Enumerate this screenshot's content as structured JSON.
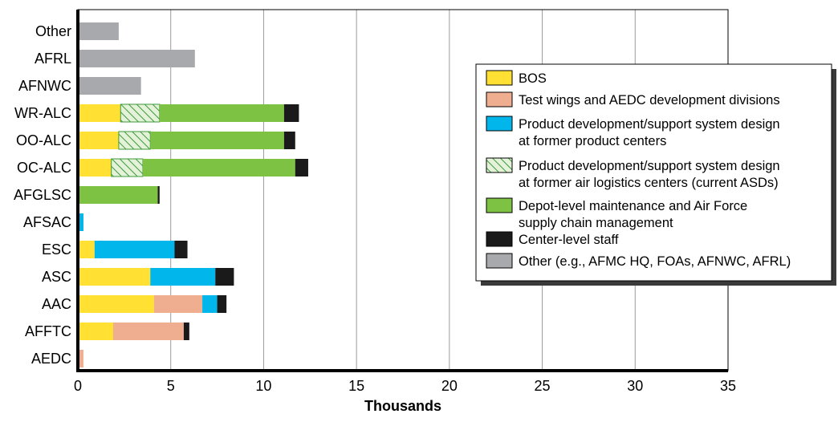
{
  "chart_data": {
    "type": "bar",
    "orientation": "horizontal",
    "stacked": true,
    "title": "",
    "xlabel": "Thousands",
    "ylabel": "",
    "xlim": [
      0,
      35
    ],
    "xticks": [
      "0",
      "5",
      "10",
      "15",
      "20",
      "25",
      "30",
      "35"
    ],
    "grid": "vertical",
    "legend_position": "right",
    "categories": [
      "Other",
      "AFRL",
      "AFNWC",
      "WR-ALC",
      "OO-ALC",
      "OC-ALC",
      "AFGLSC",
      "AFSAC",
      "ESC",
      "ASC",
      "AAC",
      "AFFTC",
      "AEDC"
    ],
    "series": [
      {
        "name": "BOS",
        "color": "#FFE033",
        "pattern": "solid",
        "values": [
          0,
          0,
          0,
          2.3,
          2.2,
          1.8,
          0,
          0,
          0.9,
          3.9,
          4.1,
          1.9,
          0
        ]
      },
      {
        "name": "Test wings and AEDC development divisions",
        "color": "#EFAE90",
        "pattern": "solid",
        "values": [
          0,
          0,
          0,
          0,
          0,
          0,
          0,
          0,
          0,
          0,
          2.6,
          3.8,
          0.3
        ]
      },
      {
        "name": "Product development/support system design at former product centers",
        "color": "#00B6EB",
        "pattern": "solid",
        "values": [
          0,
          0,
          0,
          0,
          0,
          0,
          0,
          0.3,
          4.3,
          3.5,
          0.8,
          0,
          0
        ]
      },
      {
        "name": "Product development/support system design at former air logistics centers (current ASDs)",
        "color": "#9ED08A",
        "pattern": "hatched",
        "values": [
          0,
          0,
          0,
          2.1,
          1.7,
          1.7,
          0,
          0,
          0,
          0,
          0,
          0,
          0
        ]
      },
      {
        "name": "Depot-level maintenance and Air Force supply chain management",
        "color": "#7DC242",
        "pattern": "solid",
        "values": [
          0,
          0,
          0,
          6.7,
          7.2,
          8.2,
          4.3,
          0,
          0,
          0,
          0,
          0,
          0
        ]
      },
      {
        "name": "Center-level staff",
        "color": "#1A1A1A",
        "pattern": "solid",
        "values": [
          0,
          0,
          0,
          0.8,
          0.6,
          0.7,
          0.1,
          0,
          0.7,
          1.0,
          0.5,
          0.3,
          0
        ]
      },
      {
        "name": "Other (e.g., AFMC HQ, FOAs, AFNWC, AFRL)",
        "color": "#A7A9AC",
        "pattern": "solid",
        "values": [
          2.2,
          6.3,
          3.4,
          0,
          0,
          0,
          0,
          0,
          0,
          0,
          0,
          0,
          0
        ]
      }
    ],
    "legend": [
      {
        "line1": "BOS",
        "line2": ""
      },
      {
        "line1": "Test wings and AEDC development divisions",
        "line2": ""
      },
      {
        "line1": "Product development/support system design",
        "line2": "at former product centers"
      },
      {
        "line1": "Product development/support system design",
        "line2": "at former air logistics centers (current ASDs)"
      },
      {
        "line1": "Depot-level maintenance and Air Force",
        "line2": "supply chain management"
      },
      {
        "line1": "Center-level staff",
        "line2": ""
      },
      {
        "line1": "Other (e.g., AFMC HQ, FOAs, AFNWC, AFRL)",
        "line2": ""
      }
    ]
  }
}
